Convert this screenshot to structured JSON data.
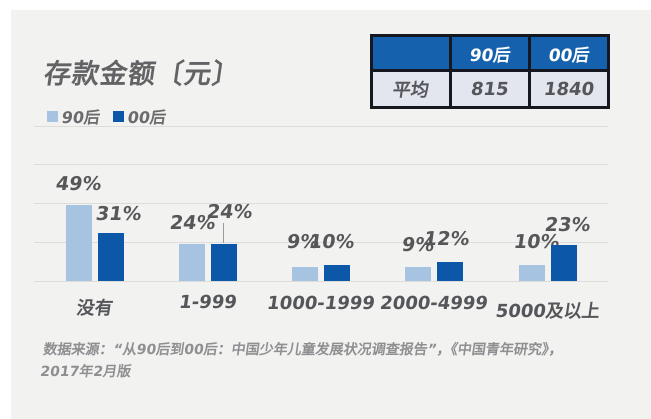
{
  "page": {
    "background": "#ffffff",
    "panel_background": "#f2f2f1"
  },
  "title": "存款金额〔元〕",
  "legend": {
    "items": [
      {
        "label": "90后",
        "color": "#a6c4e2"
      },
      {
        "label": "00后",
        "color": "#0d57a8"
      }
    ]
  },
  "summary_table": {
    "columns": [
      "",
      "90后",
      "00后"
    ],
    "rows": [
      {
        "label": "平均",
        "values": [
          "815",
          "1840"
        ]
      }
    ],
    "header_bg": "#1561ad",
    "header_text_color": "#ffffff",
    "body_bg": "#e3e6ef",
    "body_text_color": "#55565a",
    "border_color": "#15191f"
  },
  "chart_data": {
    "type": "bar",
    "title": "存款金额〔元〕",
    "categories": [
      "没有",
      "1-999",
      "1000-1999",
      "2000-4999",
      "5000及以上"
    ],
    "series": [
      {
        "name": "90后",
        "color": "#a6c4e2",
        "values": [
          49,
          24,
          9,
          9,
          10
        ]
      },
      {
        "name": "00后",
        "color": "#0d57a8",
        "values": [
          31,
          24,
          10,
          12,
          23
        ]
      }
    ],
    "unit": "%",
    "ylim": [
      0,
      100
    ],
    "gridline_values": [
      0,
      25,
      50,
      75,
      100
    ],
    "grid": true,
    "legend_position": "top-left",
    "value_labels_shown": true
  },
  "source_note": "数据来源：“从90后到00后：中国少年儿童发展状况调查报告”，《中国青年研究》，2017年2月版"
}
